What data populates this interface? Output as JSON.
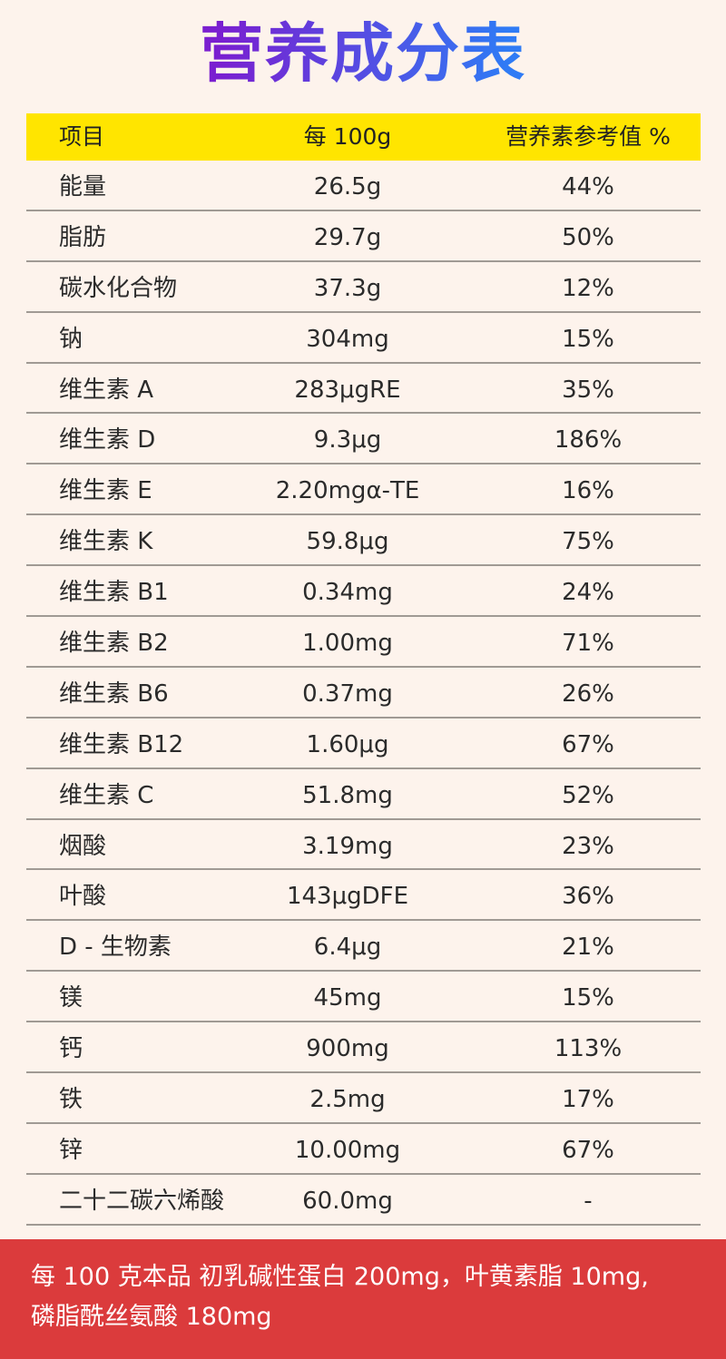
{
  "title": "营养成分表",
  "colors": {
    "header_bg": "#ffe500",
    "note_bg": "#db3b3c",
    "title_gradient": [
      "#7a1fd0",
      "#2f7bf5"
    ],
    "page_bg": "#fdf3ec"
  },
  "table": {
    "headers": [
      "项目",
      "每 100g",
      "营养素参考值 %"
    ],
    "rows": [
      [
        "能量",
        "26.5g",
        "44%"
      ],
      [
        "脂肪",
        "29.7g",
        "50%"
      ],
      [
        "碳水化合物",
        "37.3g",
        "12%"
      ],
      [
        "钠",
        "304mg",
        "15%"
      ],
      [
        "维生素 A",
        "283μgRE",
        "35%"
      ],
      [
        "维生素 D",
        "9.3μg",
        "186%"
      ],
      [
        "维生素 E",
        "2.20mgα-TE",
        "16%"
      ],
      [
        "维生素 K",
        "59.8μg",
        "75%"
      ],
      [
        "维生素 B1",
        "0.34mg",
        "24%"
      ],
      [
        "维生素 B2",
        "1.00mg",
        "71%"
      ],
      [
        "维生素 B6",
        "0.37mg",
        "26%"
      ],
      [
        "维生素 B12",
        "1.60μg",
        "67%"
      ],
      [
        "维生素 C",
        "51.8mg",
        "52%"
      ],
      [
        "烟酸",
        "3.19mg",
        "23%"
      ],
      [
        "叶酸",
        "143μgDFE",
        "36%"
      ],
      [
        "D - 生物素",
        "6.4μg",
        "21%"
      ],
      [
        "镁",
        "45mg",
        "15%"
      ],
      [
        "钙",
        "900mg",
        "113%"
      ],
      [
        "铁",
        "2.5mg",
        "17%"
      ],
      [
        "锌",
        "10.00mg",
        "67%"
      ],
      [
        "二十二碳六烯酸",
        "60.0mg",
        "-"
      ]
    ]
  },
  "note": {
    "line1": "每 100 克本品 初乳碱性蛋白 200mg，叶黄素脂 10mg,",
    "line2": "磷脂酰丝氨酸 180mg"
  }
}
